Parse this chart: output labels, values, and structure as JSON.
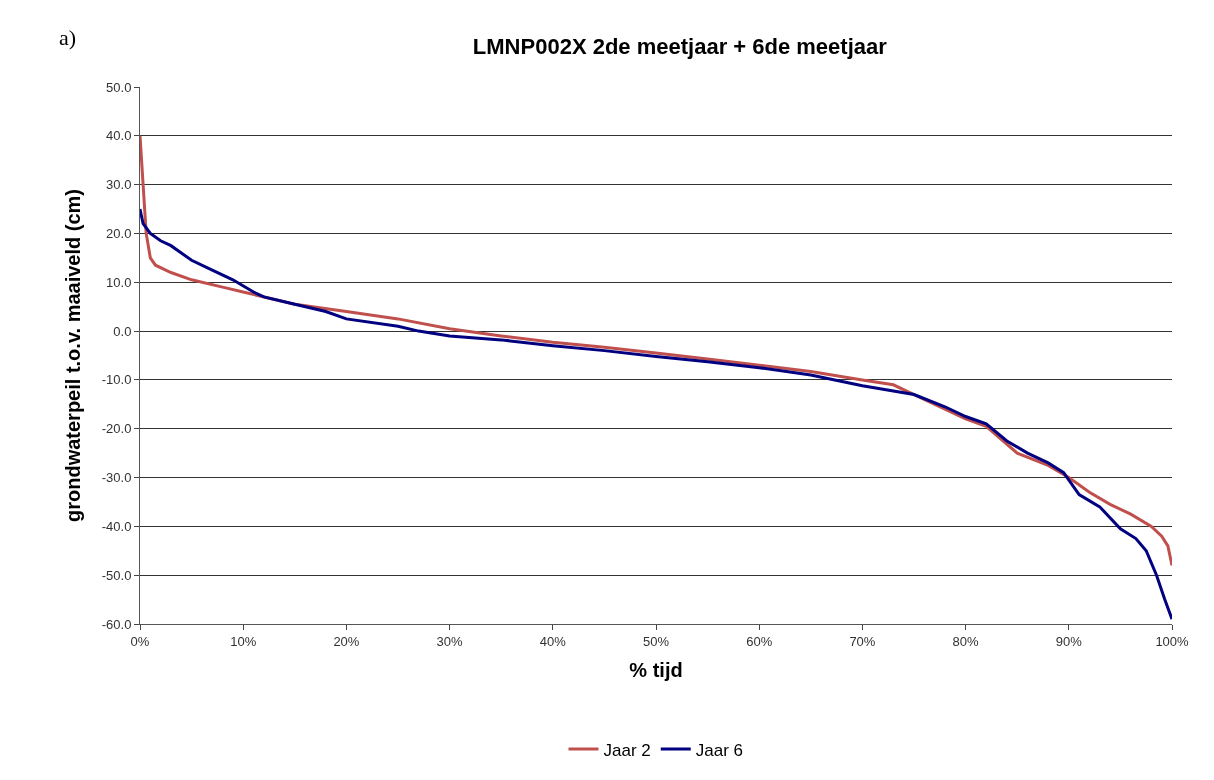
{
  "chart_data": {
    "type": "line",
    "title": "LMNP002X 2de meetjaar + 6de meetjaar",
    "xlabel": "% tijd",
    "ylabel": "grondwaterpeil t.o.v. maaiveld (cm)",
    "annotations": [
      "a)"
    ],
    "series": [
      {
        "name": "Jaar 2",
        "color": "#c0504d",
        "x": [
          0,
          0.3,
          0.6,
          1,
          1.5,
          3,
          5,
          8,
          10,
          15,
          20,
          25,
          30,
          35,
          40,
          45,
          50,
          55,
          60,
          65,
          70,
          73,
          75,
          78,
          80,
          82,
          85,
          88,
          90,
          92,
          94,
          96,
          98,
          99,
          99.6,
          100
        ],
        "values": [
          40,
          30,
          20,
          15,
          13.5,
          12,
          10.5,
          9,
          8,
          5.5,
          4,
          2.5,
          0.5,
          -1,
          -2.3,
          -3.3,
          -4.5,
          -5.7,
          -7,
          -8.3,
          -10,
          -11,
          -13,
          -16,
          -18,
          -19.5,
          -25,
          -27.5,
          -30,
          -33,
          -35.5,
          -37.5,
          -40,
          -42,
          -44,
          -48
        ]
      },
      {
        "name": "Jaar 6",
        "color": "#000080",
        "x": [
          0,
          0.3,
          1,
          2,
          3,
          5,
          7,
          9,
          11,
          12,
          15,
          18,
          20,
          25,
          27,
          30,
          35,
          40,
          45,
          50,
          55,
          60,
          65,
          70,
          75,
          78,
          80,
          82,
          84,
          86,
          88,
          89.5,
          91,
          93,
          95,
          96.5,
          97.5,
          98.5,
          99.3,
          100
        ],
        "values": [
          25,
          22,
          20,
          18.5,
          17.5,
          14.5,
          12.5,
          10.5,
          8,
          7,
          5.5,
          4,
          2.5,
          1,
          0,
          -1,
          -1.8,
          -3,
          -4,
          -5.2,
          -6.3,
          -7.5,
          -9,
          -11.2,
          -13,
          -15.5,
          -17.5,
          -19,
          -22.5,
          -25,
          -27,
          -29,
          -33.5,
          -36,
          -40.5,
          -42.5,
          -45,
          -50,
          -55,
          -59
        ]
      }
    ],
    "xlim": [
      0,
      100
    ],
    "xticks": [
      {
        "value": 0,
        "label": "0%"
      },
      {
        "value": 10,
        "label": "10%"
      },
      {
        "value": 20,
        "label": "20%"
      },
      {
        "value": 30,
        "label": "30%"
      },
      {
        "value": 40,
        "label": "40%"
      },
      {
        "value": 50,
        "label": "50%"
      },
      {
        "value": 60,
        "label": "60%"
      },
      {
        "value": 70,
        "label": "70%"
      },
      {
        "value": 80,
        "label": "80%"
      },
      {
        "value": 90,
        "label": "90%"
      },
      {
        "value": 100,
        "label": "100%"
      }
    ],
    "ylim": [
      -60,
      50
    ],
    "yticks": [
      {
        "value": -60,
        "label": "-60.0"
      },
      {
        "value": -50,
        "label": "-50.0"
      },
      {
        "value": -40,
        "label": "-40.0"
      },
      {
        "value": -30,
        "label": "-30.0"
      },
      {
        "value": -20,
        "label": "-20.0"
      },
      {
        "value": -10,
        "label": "-10.0"
      },
      {
        "value": 0,
        "label": "0.0"
      },
      {
        "value": 10,
        "label": "10.0"
      },
      {
        "value": 20,
        "label": "20.0"
      },
      {
        "value": 30,
        "label": "30.0"
      },
      {
        "value": 40,
        "label": "40.0"
      },
      {
        "value": 50,
        "label": "50.0"
      }
    ],
    "grid": "y",
    "legend": "bottom",
    "marker": "none",
    "line_style": "solid"
  }
}
